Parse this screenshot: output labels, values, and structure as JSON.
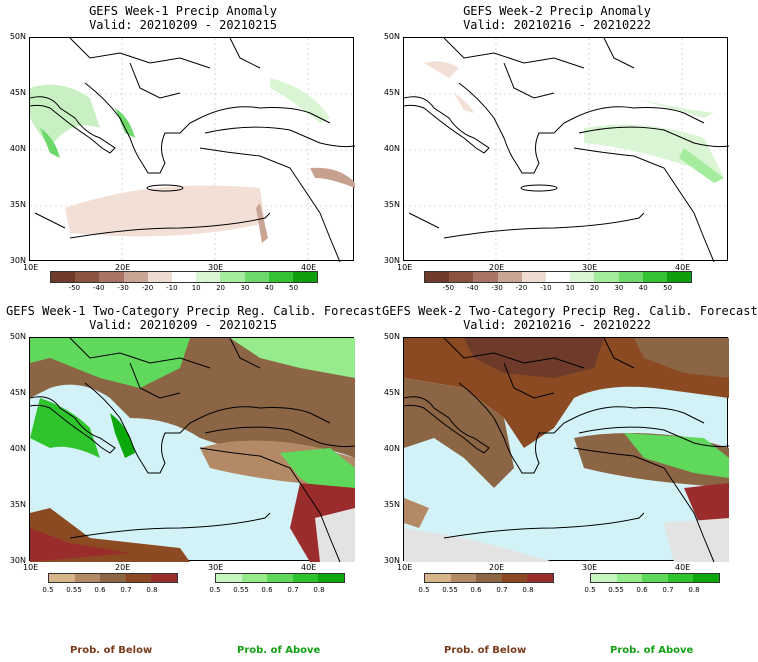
{
  "panels": [
    {
      "title": "GEFS Week-1 Precip Anomaly",
      "valid": "Valid: 20210209 - 20210215"
    },
    {
      "title": "GEFS Week-2 Precip Anomaly",
      "valid": "Valid: 20210216 - 20210222"
    },
    {
      "title": "GEFS Week-1 Two-Category Precip Reg. Calib. Forecast",
      "valid": "Valid: 20210209 - 20210215"
    },
    {
      "title": "GEFS Week-2 Two-Category Precip Reg. Calib. Forecast",
      "valid": "Valid: 20210216 - 20210222"
    }
  ],
  "lat_labels": [
    "50N",
    "45N",
    "40N",
    "35N",
    "30N"
  ],
  "lon_labels": [
    "10E",
    "20E",
    "30E",
    "40E"
  ],
  "anomaly_colorbar": {
    "ticks": [
      "-50",
      "-40",
      "-30",
      "-20",
      "-10",
      "10",
      "20",
      "30",
      "40",
      "50"
    ],
    "colors": [
      "#6e3a2a",
      "#8a5440",
      "#a87565",
      "#c9a595",
      "#efdcd0",
      "#ffffff",
      "#d9f5d4",
      "#a6ec9f",
      "#6cd96a",
      "#34c234",
      "#0e9e0e"
    ]
  },
  "below_colorbar": {
    "ticks": [
      "0.5",
      "0.55",
      "0.6",
      "0.7",
      "0.8"
    ],
    "colors": [
      "#d8b48a",
      "#b38a65",
      "#8c6545",
      "#8b4a22",
      "#9b2c2c"
    ]
  },
  "above_colorbar": {
    "ticks": [
      "0.5",
      "0.55",
      "0.6",
      "0.7",
      "0.8"
    ],
    "colors": [
      "#c6f5c0",
      "#96ec8c",
      "#5fd85c",
      "#2fc42c",
      "#0aa80a"
    ]
  },
  "legend": {
    "below": "Prob. of Below",
    "above": "Prob. of Above"
  },
  "colors": {
    "sea": "#d2f2f7",
    "land_gray": "#e3e3e3",
    "prob_below_text": "#7a3b1c",
    "prob_above_text": "#14a014"
  }
}
